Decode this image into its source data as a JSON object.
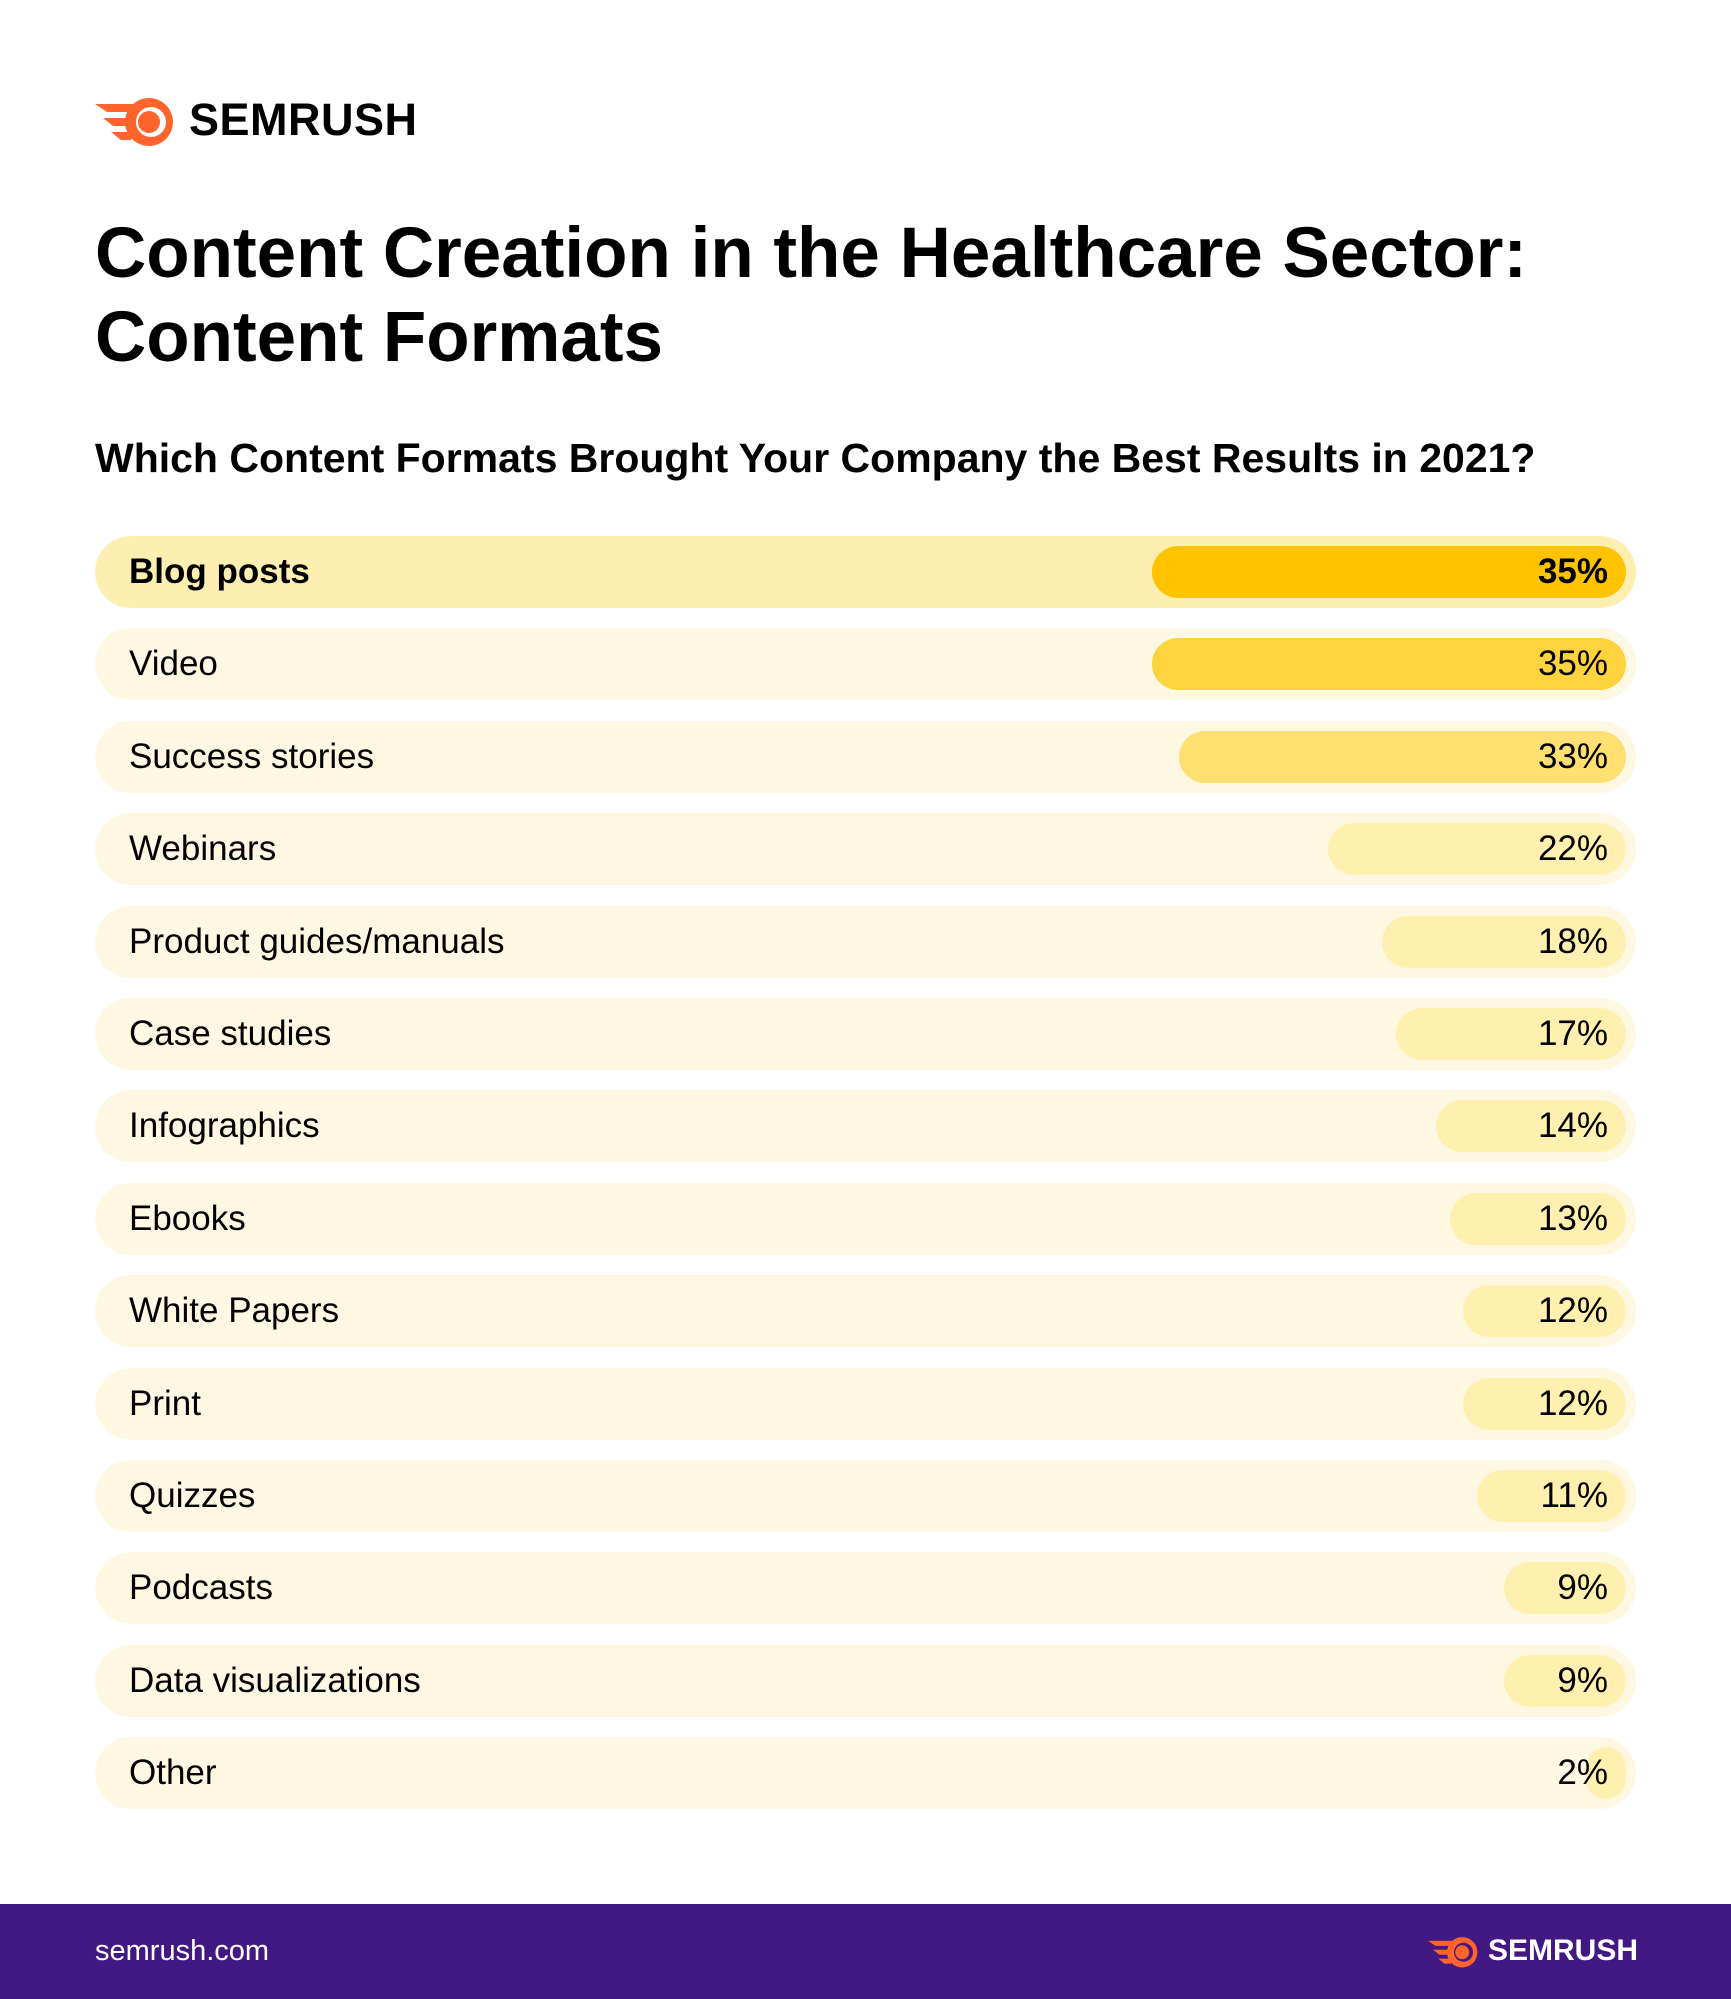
{
  "brand": {
    "name": "SEMRUSH",
    "color": "#ff642d"
  },
  "title": "Content Creation in the Healthcare Sector: Content Formats",
  "subtitle": "Which Content Formats Brought Your Company the Best Results in 2021?",
  "footer": {
    "url": "semrush.com",
    "background": "#421983"
  },
  "chart_data": {
    "type": "bar",
    "orientation": "horizontal",
    "categories": [
      "Blog posts",
      "Video",
      "Success stories",
      "Webinars",
      "Product guides/manuals",
      "Case studies",
      "Infographics",
      "Ebooks",
      "White Papers",
      "Print",
      "Quizzes",
      "Podcasts",
      "Data visualizations",
      "Other"
    ],
    "values": [
      35,
      35,
      33,
      22,
      18,
      17,
      14,
      13,
      12,
      12,
      11,
      9,
      9,
      2
    ],
    "value_labels": [
      "35%",
      "35%",
      "33%",
      "22%",
      "18%",
      "17%",
      "14%",
      "13%",
      "12%",
      "12%",
      "11%",
      "9%",
      "9%",
      "2%"
    ],
    "unit": "%",
    "xlim": [
      0,
      100
    ],
    "grid": false,
    "legend": "none",
    "bar_colors": [
      "#ffc300",
      "#ffd33d",
      "#ffe070",
      "#fff0b0",
      "#fff0b0",
      "#fff0b0",
      "#fff0b0",
      "#fff0b0",
      "#fff0b0",
      "#fff0b0",
      "#fff0b0",
      "#fff0b0",
      "#fff0b0",
      "#fff0b0"
    ],
    "track_colors": [
      "#fdefb2",
      "#fef8e3"
    ]
  }
}
